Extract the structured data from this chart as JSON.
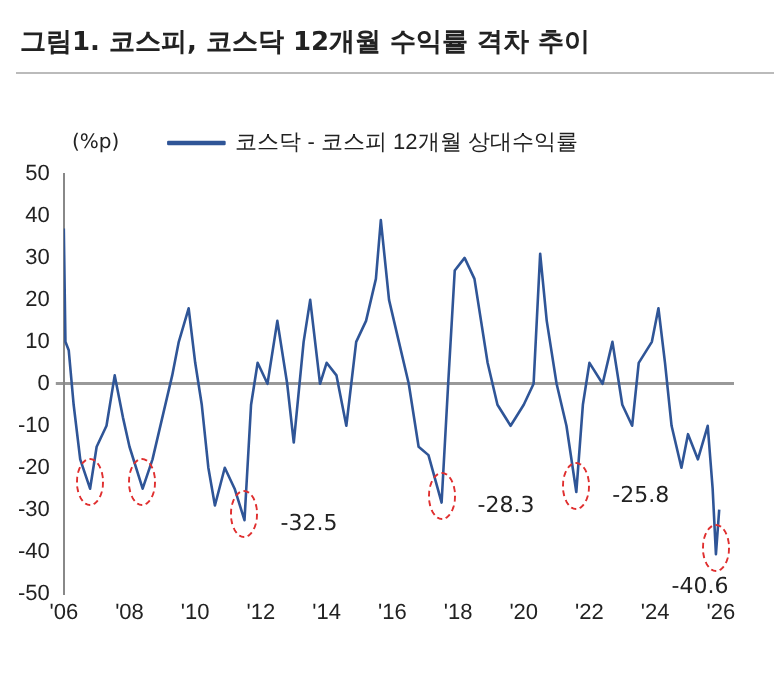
{
  "chart_data": {
    "type": "line",
    "title": "그림1. 코스피, 코스닥 12개월 수익률 격차 추이",
    "ylabel": "(%p)",
    "legend": "top",
    "marker": "none",
    "xlim": [
      2006,
      2026.4
    ],
    "xticks": [
      {
        "value": 2006,
        "label": "'06"
      },
      {
        "value": 2008,
        "label": "'08"
      },
      {
        "value": 2010,
        "label": "'10"
      },
      {
        "value": 2012,
        "label": "'12"
      },
      {
        "value": 2014,
        "label": "'14"
      },
      {
        "value": 2016,
        "label": "'16"
      },
      {
        "value": 2018,
        "label": "'18"
      },
      {
        "value": 2020,
        "label": "'20"
      },
      {
        "value": 2022,
        "label": "'22"
      },
      {
        "value": 2024,
        "label": "'24"
      },
      {
        "value": 2026,
        "label": "'26"
      }
    ],
    "ylim": [
      -50,
      50
    ],
    "yticks": [
      -50,
      -40,
      -30,
      -20,
      -10,
      0,
      10,
      20,
      30,
      40,
      50
    ],
    "annotations": [
      {
        "text": "-32.5",
        "x": 2011.5,
        "y": -32.5
      },
      {
        "text": "-28.3",
        "x": 2017.5,
        "y": -28.3
      },
      {
        "text": "-25.8",
        "x": 2021.6,
        "y": -25.8
      },
      {
        "text": "-40.6",
        "x": 2025.85,
        "y": -40.6
      }
    ],
    "series": [
      {
        "name": "코스닥 - 코스피 12개월 상대수익률",
        "color": "#2f5597",
        "x": [
          2006.0,
          2006.05,
          2006.15,
          2006.3,
          2006.5,
          2006.8,
          2007.0,
          2007.3,
          2007.55,
          2007.8,
          2008.0,
          2008.4,
          2008.7,
          2009.0,
          2009.3,
          2009.5,
          2009.8,
          2010.0,
          2010.2,
          2010.4,
          2010.6,
          2010.9,
          2011.2,
          2011.5,
          2011.7,
          2011.9,
          2012.2,
          2012.5,
          2012.8,
          2013.0,
          2013.3,
          2013.5,
          2013.8,
          2014.0,
          2014.3,
          2014.6,
          2014.9,
          2015.2,
          2015.5,
          2015.65,
          2015.9,
          2016.2,
          2016.5,
          2016.8,
          2017.1,
          2017.5,
          2017.7,
          2017.9,
          2018.2,
          2018.5,
          2018.9,
          2019.2,
          2019.6,
          2020.0,
          2020.3,
          2020.5,
          2020.7,
          2021.0,
          2021.3,
          2021.6,
          2021.8,
          2022.0,
          2022.4,
          2022.7,
          2023.0,
          2023.3,
          2023.5,
          2023.9,
          2024.1,
          2024.3,
          2024.5,
          2024.8,
          2025.0,
          2025.3,
          2025.6,
          2025.75,
          2025.85,
          2025.95
        ],
        "values": [
          37,
          10,
          8,
          -5,
          -18,
          -25,
          -15,
          -10,
          2,
          -8,
          -15,
          -25,
          -18,
          -8,
          2,
          10,
          18,
          5,
          -5,
          -20,
          -29,
          -20,
          -25,
          -32.5,
          -5,
          5,
          0,
          15,
          0,
          -14,
          10,
          20,
          0,
          5,
          2,
          -10,
          10,
          15,
          25,
          39,
          20,
          10,
          0,
          -15,
          -17,
          -28.3,
          0,
          27,
          30,
          25,
          5,
          -5,
          -10,
          -5,
          0,
          31,
          15,
          0,
          -10,
          -25.8,
          -5,
          5,
          0,
          10,
          -5,
          -10,
          5,
          10,
          18,
          5,
          -10,
          -20,
          -12,
          -18,
          -10,
          -25,
          -40.6,
          -30
        ]
      }
    ]
  }
}
